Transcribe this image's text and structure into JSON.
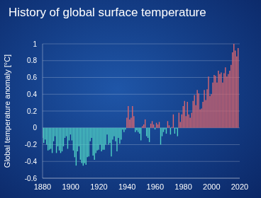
{
  "chart_data": {
    "type": "bar",
    "title": "History of global surface temperature",
    "y_label": "Global temperature anomaly [°C]",
    "x": [
      1880,
      1881,
      1882,
      1883,
      1884,
      1885,
      1886,
      1887,
      1888,
      1889,
      1890,
      1891,
      1892,
      1893,
      1894,
      1895,
      1896,
      1897,
      1898,
      1899,
      1900,
      1901,
      1902,
      1903,
      1904,
      1905,
      1906,
      1907,
      1908,
      1909,
      1910,
      1911,
      1912,
      1913,
      1914,
      1915,
      1916,
      1917,
      1918,
      1919,
      1920,
      1921,
      1922,
      1923,
      1924,
      1925,
      1926,
      1927,
      1928,
      1929,
      1930,
      1931,
      1932,
      1933,
      1934,
      1935,
      1936,
      1937,
      1938,
      1939,
      1940,
      1941,
      1942,
      1943,
      1944,
      1945,
      1946,
      1947,
      1948,
      1949,
      1950,
      1951,
      1952,
      1953,
      1954,
      1955,
      1956,
      1957,
      1958,
      1959,
      1960,
      1961,
      1962,
      1963,
      1964,
      1965,
      1966,
      1967,
      1968,
      1969,
      1970,
      1971,
      1972,
      1973,
      1974,
      1975,
      1976,
      1977,
      1978,
      1979,
      1980,
      1981,
      1982,
      1983,
      1984,
      1985,
      1986,
      1987,
      1988,
      1989,
      1990,
      1991,
      1992,
      1993,
      1994,
      1995,
      1996,
      1997,
      1998,
      1999,
      2000,
      2001,
      2002,
      2003,
      2004,
      2005,
      2006,
      2007,
      2008,
      2009,
      2010,
      2011,
      2012,
      2013,
      2014,
      2015,
      2016,
      2017,
      2018,
      2019
    ],
    "values": [
      -0.12,
      -0.18,
      -0.14,
      -0.2,
      -0.27,
      -0.26,
      -0.25,
      -0.3,
      -0.16,
      -0.1,
      -0.3,
      -0.22,
      -0.27,
      -0.3,
      -0.28,
      -0.22,
      -0.12,
      -0.1,
      -0.25,
      -0.15,
      -0.08,
      -0.15,
      -0.27,
      -0.35,
      -0.45,
      -0.28,
      -0.22,
      -0.38,
      -0.42,
      -0.45,
      -0.42,
      -0.44,
      -0.35,
      -0.34,
      -0.16,
      -0.12,
      -0.33,
      -0.38,
      -0.3,
      -0.27,
      -0.26,
      -0.2,
      -0.28,
      -0.26,
      -0.26,
      -0.2,
      -0.08,
      -0.2,
      -0.18,
      -0.34,
      -0.14,
      -0.1,
      -0.16,
      -0.28,
      -0.12,
      -0.19,
      -0.14,
      -0.02,
      -0.05,
      -0.02,
      0.12,
      0.26,
      0.1,
      0.12,
      0.26,
      0.14,
      -0.05,
      -0.03,
      -0.05,
      -0.07,
      -0.15,
      0.02,
      0.04,
      0.1,
      -0.1,
      -0.12,
      -0.17,
      0.05,
      0.08,
      0.04,
      -0.02,
      0.06,
      0.04,
      0.07,
      -0.2,
      -0.1,
      -0.05,
      -0.02,
      -0.07,
      0.08,
      0.03,
      -0.08,
      0.01,
      0.16,
      -0.07,
      -0.01,
      -0.1,
      0.18,
      0.07,
      0.16,
      0.26,
      0.32,
      0.14,
      0.31,
      0.16,
      0.12,
      0.18,
      0.32,
      0.39,
      0.27,
      0.45,
      0.41,
      0.22,
      0.23,
      0.31,
      0.45,
      0.33,
      0.46,
      0.61,
      0.38,
      0.4,
      0.54,
      0.63,
      0.62,
      0.54,
      0.68,
      0.64,
      0.66,
      0.54,
      0.65,
      0.72,
      0.61,
      0.64,
      0.68,
      0.75,
      0.9,
      1.0,
      0.92,
      0.85,
      0.95
    ],
    "colors": [
      "#4fd1c5",
      "#4fd1c5",
      "#4fd1c5",
      "#4fd1c5",
      "#4fd1c5",
      "#4fd1c5",
      "#4fd1c5",
      "#4fd1c5",
      "#4fd1c5",
      "#4fd1c5",
      "#4fd1c5",
      "#4fd1c5",
      "#4fd1c5",
      "#4fd1c5",
      "#4fd1c5",
      "#4fd1c5",
      "#4fd1c5",
      "#4fd1c5",
      "#4fd1c5",
      "#4fd1c5",
      "#4fd1c5",
      "#4fd1c5",
      "#4fd1c5",
      "#4fd1c5",
      "#4fd1c5",
      "#4fd1c5",
      "#4fd1c5",
      "#4fd1c5",
      "#4fd1c5",
      "#4fd1c5",
      "#4fd1c5",
      "#4fd1c5",
      "#4fd1c5",
      "#4fd1c5",
      "#4fd1c5",
      "#4fd1c5",
      "#4fd1c5",
      "#4fd1c5",
      "#4fd1c5",
      "#4fd1c5",
      "#4fd1c5",
      "#4fd1c5",
      "#4fd1c5",
      "#4fd1c5",
      "#4fd1c5",
      "#4fd1c5",
      "#4fd1c5",
      "#4fd1c5",
      "#4fd1c5",
      "#4fd1c5",
      "#4fd1c5",
      "#4fd1c5",
      "#4fd1c5",
      "#4fd1c5",
      "#4fd1c5",
      "#4fd1c5",
      "#4fd1c5",
      "#4fd1c5",
      "#4fd1c5",
      "#4fd1c5",
      "#d9666f",
      "#d9666f",
      "#d9666f",
      "#d9666f",
      "#d9666f",
      "#d9666f",
      "#4fd1c5",
      "#4fd1c5",
      "#4fd1c5",
      "#4fd1c5",
      "#4fd1c5",
      "#d9666f",
      "#d9666f",
      "#d9666f",
      "#4fd1c5",
      "#4fd1c5",
      "#4fd1c5",
      "#d9666f",
      "#d9666f",
      "#d9666f",
      "#4fd1c5",
      "#d9666f",
      "#d9666f",
      "#d9666f",
      "#4fd1c5",
      "#4fd1c5",
      "#4fd1c5",
      "#4fd1c5",
      "#4fd1c5",
      "#d9666f",
      "#d9666f",
      "#4fd1c5",
      "#d9666f",
      "#d9666f",
      "#4fd1c5",
      "#4fd1c5",
      "#4fd1c5",
      "#d9666f",
      "#d9666f",
      "#d9666f",
      "#d9666f",
      "#d9666f",
      "#d9666f",
      "#d9666f",
      "#d9666f",
      "#d9666f",
      "#d9666f",
      "#d9666f",
      "#d9666f",
      "#d9666f",
      "#d9666f",
      "#d9666f",
      "#d9666f",
      "#d9666f",
      "#d9666f",
      "#d9666f",
      "#d9666f",
      "#d9666f",
      "#d9666f",
      "#d9666f",
      "#d9666f",
      "#d9666f",
      "#d9666f",
      "#d9666f",
      "#d9666f",
      "#d9666f",
      "#d9666f",
      "#d9666f",
      "#d9666f",
      "#d9666f",
      "#d9666f",
      "#d9666f",
      "#d9666f",
      "#d9666f",
      "#d9666f",
      "#d9666f",
      "#d9666f",
      "#d9666f",
      "#d9666f",
      "#d9666f"
    ],
    "xlim": [
      1880,
      2020
    ],
    "xticks": [
      1880,
      1900,
      1920,
      1940,
      1960,
      1980,
      2000,
      2020
    ],
    "ylim": [
      -0.6,
      1
    ],
    "yticks": [
      -0.6,
      -0.4,
      -0.2,
      0,
      0.2,
      0.4,
      0.6,
      0.8,
      1
    ],
    "grid": true
  }
}
